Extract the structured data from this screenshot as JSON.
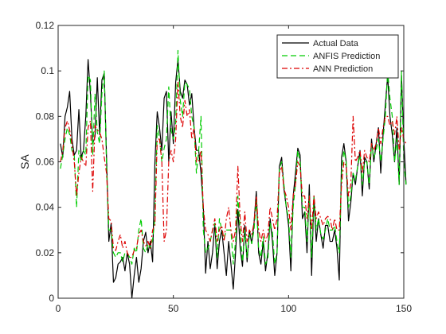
{
  "chart_data": {
    "type": "line",
    "title": "",
    "xlabel": "",
    "ylabel": "SA",
    "xlim": [
      0,
      150
    ],
    "ylim": [
      0,
      0.12
    ],
    "xticks": [
      0,
      50,
      100,
      150
    ],
    "yticks": [
      0,
      0.02,
      0.04,
      0.06,
      0.08,
      0.1,
      0.12
    ],
    "xtick_labels": [
      "0",
      "50",
      "100",
      "150"
    ],
    "ytick_labels": [
      "0",
      "0.02",
      "0.04",
      "0.06",
      "0.08",
      "0.1",
      "0.12"
    ],
    "grid": false,
    "legend_position": "top-right",
    "series": [
      {
        "name": "Actual Data",
        "color": "#000000",
        "style": "solid",
        "values": [
          0.068,
          0.062,
          0.08,
          0.084,
          0.091,
          0.07,
          0.063,
          0.065,
          0.083,
          0.062,
          0.065,
          0.08,
          0.105,
          0.09,
          0.068,
          0.071,
          0.097,
          0.072,
          0.096,
          0.099,
          0.062,
          0.025,
          0.033,
          0.007,
          0.009,
          0.015,
          0.016,
          0.018,
          0.012,
          0.02,
          0.015,
          0.0,
          0.01,
          0.018,
          0.007,
          0.013,
          0.025,
          0.029,
          0.02,
          0.025,
          0.016,
          0.06,
          0.082,
          0.075,
          0.065,
          0.088,
          0.091,
          0.06,
          0.082,
          0.068,
          0.095,
          0.105,
          0.091,
          0.088,
          0.096,
          0.094,
          0.085,
          0.09,
          0.075,
          0.065,
          0.065,
          0.055,
          0.04,
          0.011,
          0.025,
          0.013,
          0.02,
          0.033,
          0.013,
          0.025,
          0.03,
          0.02,
          0.01,
          0.025,
          0.015,
          0.004,
          0.02,
          0.039,
          0.022,
          0.014,
          0.032,
          0.016,
          0.03,
          0.024,
          0.033,
          0.047,
          0.02,
          0.015,
          0.025,
          0.012,
          0.02,
          0.035,
          0.025,
          0.01,
          0.02,
          0.058,
          0.062,
          0.048,
          0.04,
          0.032,
          0.012,
          0.045,
          0.055,
          0.066,
          0.063,
          0.035,
          0.038,
          0.02,
          0.05,
          0.01,
          0.045,
          0.025,
          0.035,
          0.028,
          0.022,
          0.032,
          0.032,
          0.025,
          0.025,
          0.03,
          0.022,
          0.008,
          0.062,
          0.068,
          0.06,
          0.034,
          0.042,
          0.055,
          0.05,
          0.058,
          0.065,
          0.045,
          0.062,
          0.06,
          0.048,
          0.07,
          0.06,
          0.068,
          0.075,
          0.055,
          0.072,
          0.085,
          0.098,
          0.08,
          0.072,
          0.06,
          0.075,
          0.05,
          0.098,
          0.07,
          0.05
        ]
      },
      {
        "name": "ANFIS Prediction",
        "color": "#00cc00",
        "style": "dashed",
        "values": [
          0.057,
          0.063,
          0.07,
          0.075,
          0.072,
          0.065,
          0.063,
          0.04,
          0.065,
          0.06,
          0.065,
          0.063,
          0.098,
          0.096,
          0.063,
          0.09,
          0.073,
          0.068,
          0.09,
          0.1,
          0.058,
          0.03,
          0.03,
          0.02,
          0.018,
          0.02,
          0.02,
          0.016,
          0.02,
          0.02,
          0.018,
          0.015,
          0.022,
          0.02,
          0.03,
          0.035,
          0.022,
          0.02,
          0.024,
          0.022,
          0.026,
          0.035,
          0.076,
          0.07,
          0.06,
          0.066,
          0.07,
          0.093,
          0.074,
          0.07,
          0.077,
          0.109,
          0.087,
          0.08,
          0.095,
          0.094,
          0.092,
          0.08,
          0.075,
          0.055,
          0.065,
          0.08,
          0.03,
          0.02,
          0.022,
          0.025,
          0.03,
          0.033,
          0.018,
          0.035,
          0.03,
          0.026,
          0.03,
          0.03,
          0.03,
          0.015,
          0.025,
          0.045,
          0.03,
          0.016,
          0.03,
          0.018,
          0.028,
          0.024,
          0.03,
          0.043,
          0.022,
          0.018,
          0.027,
          0.015,
          0.017,
          0.033,
          0.029,
          0.015,
          0.02,
          0.057,
          0.06,
          0.05,
          0.04,
          0.035,
          0.018,
          0.04,
          0.05,
          0.065,
          0.06,
          0.04,
          0.04,
          0.025,
          0.045,
          0.018,
          0.045,
          0.03,
          0.035,
          0.028,
          0.026,
          0.03,
          0.035,
          0.03,
          0.03,
          0.032,
          0.025,
          0.02,
          0.055,
          0.065,
          0.06,
          0.04,
          0.045,
          0.055,
          0.052,
          0.058,
          0.063,
          0.05,
          0.06,
          0.06,
          0.05,
          0.068,
          0.062,
          0.065,
          0.07,
          0.06,
          0.07,
          0.08,
          0.1,
          0.088,
          0.08,
          0.06,
          0.07,
          0.05,
          0.1,
          0.06,
          0.05
        ]
      },
      {
        "name": "ANN Prediction",
        "color": "#dd0000",
        "style": "dashdot",
        "values": [
          0.06,
          0.065,
          0.075,
          0.078,
          0.074,
          0.068,
          0.06,
          0.045,
          0.055,
          0.062,
          0.06,
          0.058,
          0.075,
          0.078,
          0.047,
          0.076,
          0.074,
          0.073,
          0.07,
          0.062,
          0.055,
          0.035,
          0.034,
          0.022,
          0.021,
          0.025,
          0.028,
          0.022,
          0.025,
          0.02,
          0.018,
          0.018,
          0.021,
          0.022,
          0.028,
          0.03,
          0.025,
          0.023,
          0.025,
          0.022,
          0.03,
          0.032,
          0.07,
          0.07,
          0.06,
          0.025,
          0.03,
          0.06,
          0.065,
          0.06,
          0.07,
          0.095,
          0.08,
          0.075,
          0.087,
          0.08,
          0.083,
          0.07,
          0.075,
          0.06,
          0.06,
          0.065,
          0.04,
          0.03,
          0.028,
          0.025,
          0.03,
          0.035,
          0.025,
          0.03,
          0.032,
          0.025,
          0.035,
          0.04,
          0.03,
          0.025,
          0.03,
          0.058,
          0.035,
          0.025,
          0.038,
          0.025,
          0.03,
          0.028,
          0.033,
          0.045,
          0.03,
          0.025,
          0.03,
          0.025,
          0.028,
          0.04,
          0.035,
          0.03,
          0.035,
          0.055,
          0.058,
          0.048,
          0.045,
          0.04,
          0.03,
          0.045,
          0.05,
          0.06,
          0.058,
          0.045,
          0.045,
          0.035,
          0.045,
          0.03,
          0.045,
          0.035,
          0.038,
          0.035,
          0.032,
          0.035,
          0.036,
          0.035,
          0.03,
          0.035,
          0.03,
          0.03,
          0.05,
          0.06,
          0.058,
          0.045,
          0.05,
          0.08,
          0.06,
          0.062,
          0.065,
          0.055,
          0.065,
          0.062,
          0.06,
          0.068,
          0.065,
          0.068,
          0.075,
          0.068,
          0.075,
          0.08,
          0.08,
          0.076,
          0.078,
          0.072,
          0.08,
          0.065,
          0.075,
          0.07,
          0.068
        ]
      }
    ]
  }
}
